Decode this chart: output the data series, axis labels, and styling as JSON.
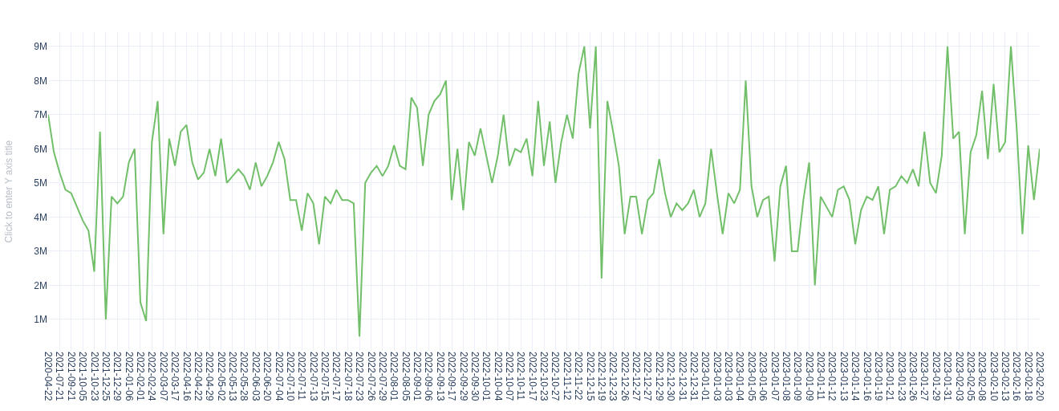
{
  "chart_data": {
    "type": "line",
    "ylabel": "Click to enter Y axis title",
    "categories": [
      "2020-04-22",
      null,
      "2021-07-21",
      null,
      "2021-09-21",
      null,
      "2021-10-05",
      null,
      "2021-10-23",
      null,
      "2021-12-25",
      null,
      "2021-12-29",
      null,
      "2022-01-06",
      null,
      "2022-02-01",
      null,
      "2022-02-24",
      null,
      "2022-03-07",
      null,
      "2022-03-17",
      null,
      "2022-04-16",
      null,
      "2022-04-22",
      null,
      "2022-04-29",
      null,
      "2022-05-02",
      null,
      "2022-05-13",
      null,
      "2022-05-28",
      null,
      "2022-06-03",
      null,
      "2022-06-20",
      null,
      "2022-07-04",
      null,
      "2022-07-10",
      null,
      "2022-07-11",
      null,
      "2022-07-13",
      null,
      "2022-07-15",
      null,
      "2022-07-17",
      null,
      "2022-07-18",
      null,
      "2022-07-23",
      null,
      "2022-07-26",
      null,
      "2022-07-29",
      null,
      "2022-08-01",
      null,
      "2022-08-05",
      null,
      "2022-09-01",
      null,
      "2022-09-06",
      null,
      "2022-09-13",
      null,
      "2022-09-17",
      null,
      "2022-09-29",
      null,
      "2022-09-30",
      null,
      "2022-10-01",
      null,
      "2022-10-04",
      null,
      "2022-10-07",
      null,
      "2022-10-11",
      null,
      "2022-10-17",
      null,
      "2022-10-23",
      null,
      "2022-10-27",
      null,
      "2022-11-12",
      null,
      "2022-11-22",
      null,
      "2022-12-15",
      null,
      "2022-12-19",
      null,
      "2022-12-23",
      null,
      "2022-12-26",
      null,
      "2022-12-27",
      null,
      "2022-12-27",
      null,
      "2022-12-29",
      null,
      "2022-12-30",
      null,
      "2022-12-31",
      null,
      "2022-12-31",
      null,
      "2023-01-01",
      null,
      "2023-01-03",
      null,
      "2023-01-03",
      null,
      "2023-01-04",
      null,
      "2023-01-05",
      null,
      "2023-01-06",
      null,
      "2023-01-07",
      null,
      "2023-01-08",
      null,
      "2023-01-09",
      null,
      "2023-01-09",
      null,
      "2023-01-11",
      null,
      "2023-01-12",
      null,
      "2023-01-13",
      null,
      "2023-01-14",
      null,
      "2023-01-16",
      null,
      "2023-01-19",
      null,
      "2023-01-21",
      null,
      "2023-01-23",
      null,
      "2023-01-26",
      null,
      "2023-01-27",
      null,
      "2023-01-29",
      null,
      "2023-01-31",
      null,
      "2023-02-03",
      null,
      "2023-02-05",
      null,
      "2023-02-08",
      null,
      "2023-02-10",
      null,
      "2023-02-13",
      null,
      "2023-02-16",
      null,
      "2023-02-18",
      null,
      "2023-02-20"
    ],
    "values": [
      7000000,
      5900000,
      5300000,
      4800000,
      4700000,
      4300000,
      3900000,
      3600000,
      2400000,
      6500000,
      1000000,
      4600000,
      4400000,
      4600000,
      5600000,
      6000000,
      1500000,
      950000,
      6200000,
      7400000,
      3500000,
      6300000,
      5500000,
      6500000,
      6700000,
      5600000,
      5100000,
      5300000,
      6000000,
      5200000,
      6300000,
      5000000,
      5200000,
      5400000,
      5200000,
      4800000,
      5600000,
      4900000,
      5200000,
      5600000,
      6200000,
      5700000,
      4500000,
      4500000,
      3600000,
      4700000,
      4400000,
      3200000,
      4600000,
      4400000,
      4800000,
      4500000,
      4500000,
      4400000,
      500000,
      5000000,
      5300000,
      5500000,
      5200000,
      5500000,
      6100000,
      5500000,
      5400000,
      7500000,
      7200000,
      5500000,
      7000000,
      7400000,
      7600000,
      8000000,
      4500000,
      6000000,
      4200000,
      6200000,
      5800000,
      6600000,
      5800000,
      5000000,
      5800000,
      7000000,
      5500000,
      6000000,
      5900000,
      6300000,
      5200000,
      7400000,
      5500000,
      6800000,
      5000000,
      6200000,
      7000000,
      6300000,
      8200000,
      9000000,
      6600000,
      9000000,
      2200000,
      7400000,
      6500000,
      5500000,
      3500000,
      4600000,
      4600000,
      3500000,
      4500000,
      4700000,
      5700000,
      4700000,
      4000000,
      4400000,
      4200000,
      4400000,
      4800000,
      4000000,
      4400000,
      6000000,
      4700000,
      3500000,
      4700000,
      4400000,
      4800000,
      8000000,
      4900000,
      4000000,
      4500000,
      4600000,
      2700000,
      4900000,
      5500000,
      3000000,
      3000000,
      4500000,
      5600000,
      2000000,
      4600000,
      4300000,
      4000000,
      4800000,
      4900000,
      4500000,
      3200000,
      4200000,
      4600000,
      4500000,
      4900000,
      3500000,
      4800000,
      4900000,
      5200000,
      5000000,
      5400000,
      4900000,
      6500000,
      5000000,
      4700000,
      5800000,
      9000000,
      6300000,
      6500000,
      3500000,
      5900000,
      6400000,
      7700000,
      5700000,
      7900000,
      5900000,
      6200000,
      9000000,
      6600000,
      3500000,
      6100000,
      4500000,
      6000000
    ],
    "color": "#72bf6a",
    "ylim": [
      80000,
      9420000
    ],
    "yticks": [
      {
        "value": 1000000,
        "label": "1M"
      },
      {
        "value": 2000000,
        "label": "2M"
      },
      {
        "value": 3000000,
        "label": "3M"
      },
      {
        "value": 4000000,
        "label": "4M"
      },
      {
        "value": 5000000,
        "label": "5M"
      },
      {
        "value": 6000000,
        "label": "6M"
      },
      {
        "value": 7000000,
        "label": "7M"
      },
      {
        "value": 8000000,
        "label": "8M"
      },
      {
        "value": 9000000,
        "label": "9M"
      }
    ],
    "grid": true
  }
}
